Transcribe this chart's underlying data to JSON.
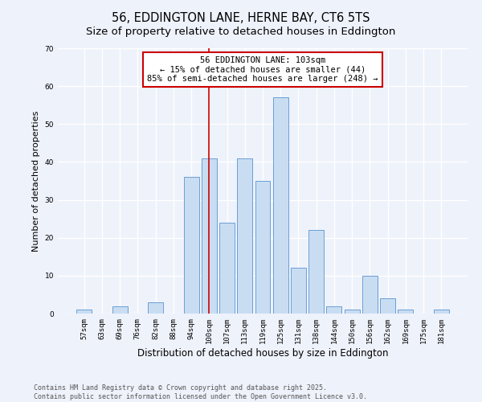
{
  "title": "56, EDDINGTON LANE, HERNE BAY, CT6 5TS",
  "subtitle": "Size of property relative to detached houses in Eddington",
  "xlabel": "Distribution of detached houses by size in Eddington",
  "ylabel": "Number of detached properties",
  "categories": [
    "57sqm",
    "63sqm",
    "69sqm",
    "76sqm",
    "82sqm",
    "88sqm",
    "94sqm",
    "100sqm",
    "107sqm",
    "113sqm",
    "119sqm",
    "125sqm",
    "131sqm",
    "138sqm",
    "144sqm",
    "150sqm",
    "156sqm",
    "162sqm",
    "169sqm",
    "175sqm",
    "181sqm"
  ],
  "values": [
    1,
    0,
    2,
    0,
    3,
    0,
    36,
    41,
    24,
    41,
    35,
    57,
    12,
    22,
    2,
    1,
    10,
    4,
    1,
    0,
    1
  ],
  "bar_color": "#c9ddf2",
  "bar_edge_color": "#6b9fd4",
  "background_color": "#eef2fb",
  "grid_color": "#ffffff",
  "ylim": [
    0,
    70
  ],
  "yticks": [
    0,
    10,
    20,
    30,
    40,
    50,
    60,
    70
  ],
  "vline_x_index": 7,
  "vline_color": "#cc0000",
  "annotation_text": "56 EDDINGTON LANE: 103sqm\n← 15% of detached houses are smaller (44)\n85% of semi-detached houses are larger (248) →",
  "footer_text": "Contains HM Land Registry data © Crown copyright and database right 2025.\nContains public sector information licensed under the Open Government Licence v3.0.",
  "title_fontsize": 10.5,
  "subtitle_fontsize": 9.5,
  "xlabel_fontsize": 8.5,
  "ylabel_fontsize": 8,
  "tick_fontsize": 6.5,
  "annotation_fontsize": 7.5,
  "footer_fontsize": 6
}
